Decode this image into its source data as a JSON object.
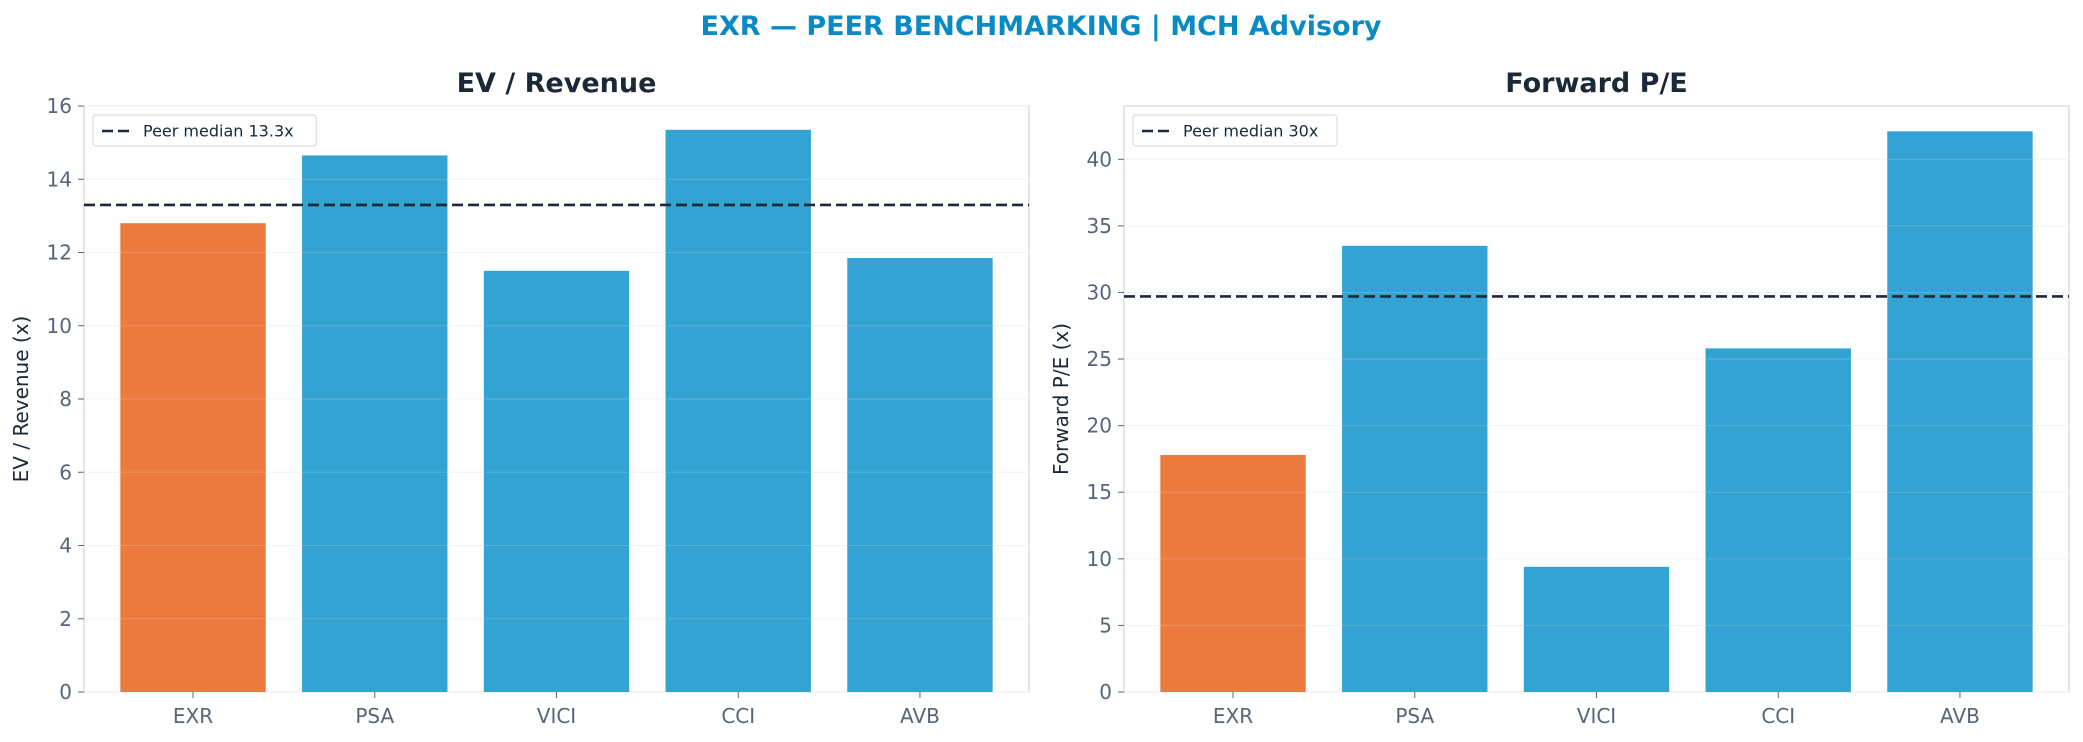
{
  "suptitle": "EXR — PEER BENCHMARKING | MCH Advisory",
  "colors": {
    "title": "#0a8ac2",
    "highlight": "#ec7a3e",
    "peer": "#33a3d4",
    "median_line": "#1b2838"
  },
  "chart_data": [
    {
      "type": "bar",
      "title": "EV / Revenue",
      "xlabel": "",
      "ylabel": "EV / Revenue (x)",
      "categories": [
        "EXR",
        "PSA",
        "VICI",
        "CCI",
        "AVB"
      ],
      "values": [
        12.8,
        14.65,
        11.5,
        15.35,
        11.85
      ],
      "highlight": "EXR",
      "ylim": [
        0,
        16
      ],
      "yticks": [
        0,
        2,
        4,
        6,
        8,
        10,
        12,
        14,
        16
      ],
      "reference_line": {
        "value": 13.3,
        "label": "Peer median 13.3x",
        "style": "dashed"
      },
      "legend": "top-left",
      "grid": true
    },
    {
      "type": "bar",
      "title": "Forward P/E",
      "xlabel": "",
      "ylabel": "Forward P/E (x)",
      "categories": [
        "EXR",
        "PSA",
        "VICI",
        "CCI",
        "AVB"
      ],
      "values": [
        17.8,
        33.5,
        9.4,
        25.8,
        42.1
      ],
      "highlight": "EXR",
      "ylim": [
        0,
        44
      ],
      "yticks": [
        0,
        5,
        10,
        15,
        20,
        25,
        30,
        35,
        40
      ],
      "reference_line": {
        "value": 29.7,
        "label": "Peer median 30x",
        "style": "dashed"
      },
      "legend": "top-left",
      "grid": true
    }
  ]
}
